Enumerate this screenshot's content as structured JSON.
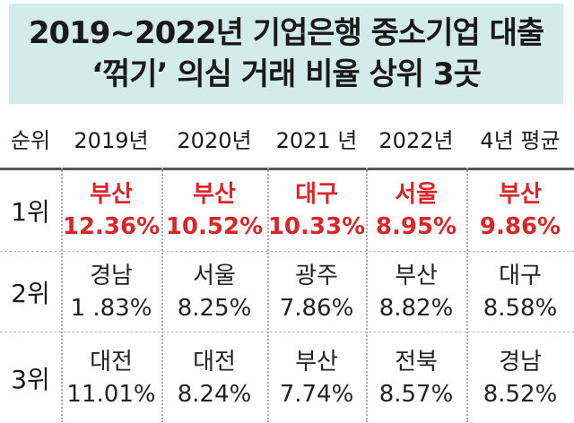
{
  "title": {
    "line1": "2019~2022년 기업은행 중소기업 대출",
    "line2": "‘꺾기’ 의심 거래 비율 상위 3곳"
  },
  "table": {
    "headers": [
      "순위",
      "2019년",
      "2020년",
      "2021 년",
      "2022년",
      "4년 평균"
    ],
    "rows": [
      {
        "rank": "1위",
        "cells": [
          {
            "region": "부산",
            "value": "12.36%"
          },
          {
            "region": "부산",
            "value": "10.52%"
          },
          {
            "region": "대구",
            "value": "10.33%"
          },
          {
            "region": "서울",
            "value": "8.95%"
          },
          {
            "region": "부산",
            "value": "9.86%"
          }
        ]
      },
      {
        "rank": "2위",
        "cells": [
          {
            "region": "경남",
            "value": "1 .83%"
          },
          {
            "region": "서울",
            "value": "8.25%"
          },
          {
            "region": "광주",
            "value": "7.86%"
          },
          {
            "region": "부산",
            "value": "8.82%"
          },
          {
            "region": "대구",
            "value": "8.58%"
          }
        ]
      },
      {
        "rank": "3위",
        "cells": [
          {
            "region": "대전",
            "value": "11.01%"
          },
          {
            "region": "대전",
            "value": "8.24%"
          },
          {
            "region": "부산",
            "value": "7.74%"
          },
          {
            "region": "전북",
            "value": "8.57%"
          },
          {
            "region": "경남",
            "value": "8.52%"
          }
        ]
      }
    ]
  },
  "colors": {
    "title_background": "#d4ece9",
    "highlight": "#d9262b"
  }
}
